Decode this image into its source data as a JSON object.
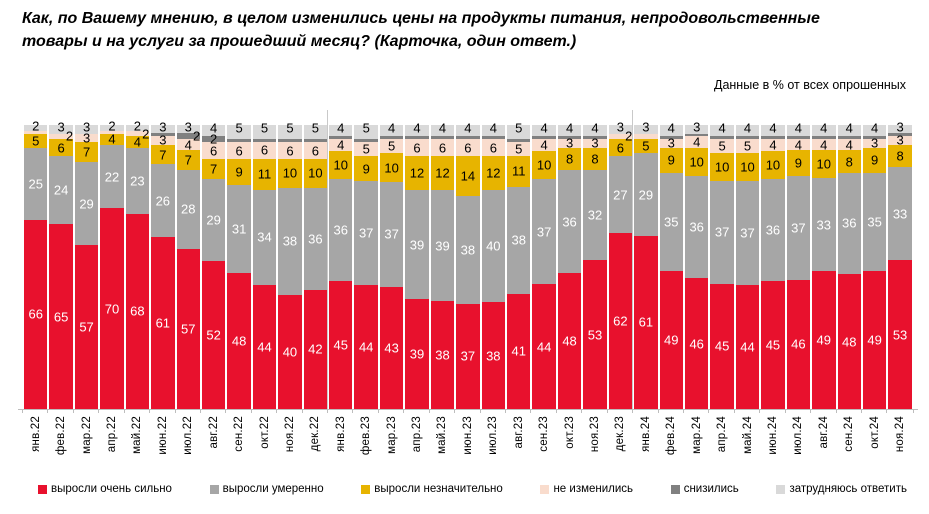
{
  "title": {
    "line1": "Как, по Вашему мнению, в целом изменились цены на продукты питания, непродовольственные",
    "line2": "товары и на услуги за прошедший месяц? (Карточка, один ответ.)"
  },
  "subtitle": "Данные в % от всех опрошенных",
  "chart_data": {
    "type": "bar",
    "stacked": true,
    "unit": "%",
    "legend_position": "bottom",
    "axis_color": "#BDBDBD",
    "year_separators": [
      12,
      24
    ],
    "categories": [
      "янв.22",
      "фев.22",
      "мар.22",
      "апр.22",
      "май.22",
      "июн.22",
      "июл.22",
      "авг.22",
      "сен.22",
      "окт.22",
      "ноя.22",
      "дек.22",
      "янв.23",
      "фев.23",
      "мар.23",
      "апр.23",
      "май.23",
      "июн.23",
      "июл.23",
      "авг.23",
      "сен.23",
      "окт.23",
      "ноя.23",
      "дек.23",
      "янв.24",
      "фев.24",
      "мар.24",
      "апр.24",
      "май.24",
      "июн.24",
      "июл.24",
      "авг.24",
      "сен.24",
      "окт.24",
      "ноя.24"
    ],
    "series": [
      {
        "id": "strong",
        "name": "выросли очень сильно",
        "color": "#E8112D",
        "label_color": "#FFFFFF",
        "values": [
          66,
          65,
          57,
          70,
          68,
          61,
          57,
          52,
          48,
          44,
          40,
          42,
          45,
          44,
          43,
          39,
          38,
          37,
          38,
          41,
          44,
          48,
          53,
          62,
          61,
          49,
          46,
          45,
          44,
          45,
          46,
          49,
          48,
          49,
          53
        ]
      },
      {
        "id": "moderate",
        "name": "выросли умеренно",
        "color": "#A6A6A6",
        "label_color": "#FFFFFF",
        "values": [
          25,
          24,
          29,
          22,
          23,
          26,
          28,
          29,
          31,
          34,
          38,
          36,
          36,
          37,
          37,
          39,
          39,
          38,
          40,
          38,
          37,
          36,
          32,
          27,
          29,
          35,
          36,
          37,
          37,
          36,
          37,
          33,
          36,
          35,
          33
        ]
      },
      {
        "id": "slight",
        "name": "выросли незначительно",
        "color": "#E7B400",
        "label_color": "#000000",
        "values": [
          5,
          6,
          7,
          4,
          4,
          7,
          7,
          7,
          9,
          11,
          10,
          10,
          10,
          9,
          10,
          12,
          12,
          14,
          12,
          11,
          10,
          8,
          8,
          6,
          5,
          9,
          10,
          10,
          10,
          10,
          9,
          10,
          8,
          9,
          8
        ]
      },
      {
        "id": "unchanged",
        "name": "не изменились",
        "color": "#F9DCCD",
        "label_color": "#000000",
        "values": [
          1,
          2,
          3,
          1,
          2,
          3,
          4,
          6,
          6,
          6,
          6,
          6,
          4,
          5,
          5,
          6,
          6,
          6,
          6,
          5,
          4,
          3,
          3,
          2,
          2,
          3,
          4,
          5,
          5,
          4,
          4,
          4,
          4,
          3,
          3
        ]
      },
      {
        "id": "decreased",
        "name": "снизились",
        "color": "#808080",
        "label_color": "#000000",
        "values": [
          0,
          0,
          0,
          0,
          0,
          1,
          2,
          2,
          1,
          1,
          1,
          1,
          1,
          1,
          1,
          1,
          1,
          1,
          1,
          1,
          1,
          1,
          1,
          0,
          0,
          1,
          1,
          1,
          1,
          1,
          1,
          1,
          1,
          1,
          1
        ]
      },
      {
        "id": "dk",
        "name": "затрудняюсь ответить",
        "color": "#D9D9D9",
        "label_color": "#000000",
        "values": [
          2,
          3,
          3,
          2,
          2,
          3,
          3,
          4,
          5,
          5,
          5,
          5,
          4,
          5,
          4,
          4,
          4,
          4,
          4,
          5,
          4,
          4,
          4,
          3,
          3,
          4,
          3,
          4,
          4,
          4,
          4,
          4,
          4,
          4,
          3
        ]
      }
    ],
    "label_overrides": [
      {
        "series": "unchanged",
        "col": 1,
        "mode": "right"
      },
      {
        "series": "unchanged",
        "col": 4,
        "mode": "right"
      },
      {
        "series": "unchanged",
        "col": 23,
        "mode": "right"
      },
      {
        "series": "unchanged",
        "col": 24,
        "mode": "hide"
      },
      {
        "series": "decreased",
        "col": 6,
        "mode": "right"
      }
    ]
  }
}
